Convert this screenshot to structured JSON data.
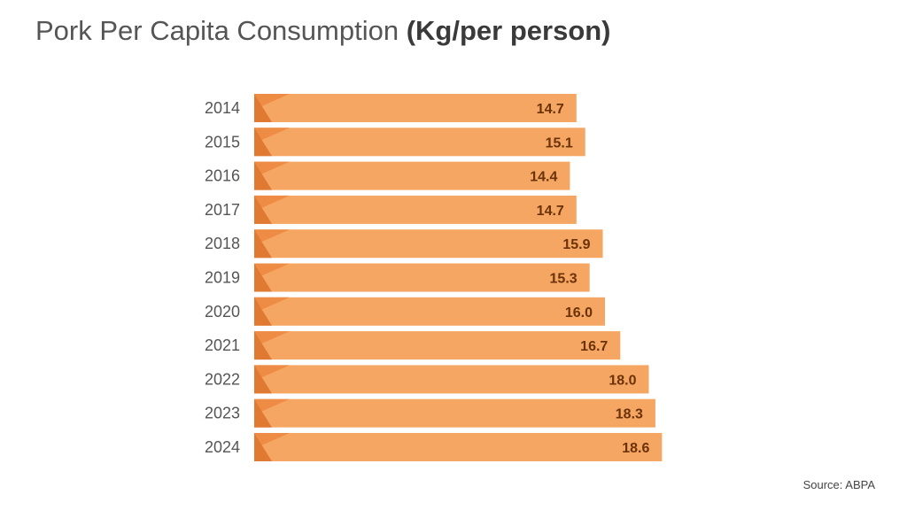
{
  "title": {
    "main": "Pork Per Capita Consumption",
    "unit": "(Kg/per person)"
  },
  "source": "Source: ABPA",
  "colors": {
    "bar": "#f5a662",
    "bar_accent_dark": "#e07a32",
    "bar_accent_mid": "#ee8c45",
    "value_label": "#6b3208",
    "year_label": "#555555"
  },
  "chart_data": {
    "type": "bar",
    "orientation": "horizontal",
    "title": "Pork Per Capita Consumption (Kg/per person)",
    "categories": [
      "2014",
      "2015",
      "2016",
      "2017",
      "2018",
      "2019",
      "2020",
      "2021",
      "2022",
      "2023",
      "2024"
    ],
    "values": [
      14.7,
      15.1,
      14.4,
      14.7,
      15.9,
      15.3,
      16.0,
      16.7,
      18.0,
      18.3,
      18.6
    ],
    "value_labels": [
      "14.7",
      "15.1",
      "14.4",
      "14.7",
      "15.9",
      "15.3",
      "16.0",
      "16.7",
      "18.0",
      "18.3",
      "18.6"
    ],
    "xlabel": "",
    "ylabel": "",
    "grid": false,
    "legend": "none"
  }
}
